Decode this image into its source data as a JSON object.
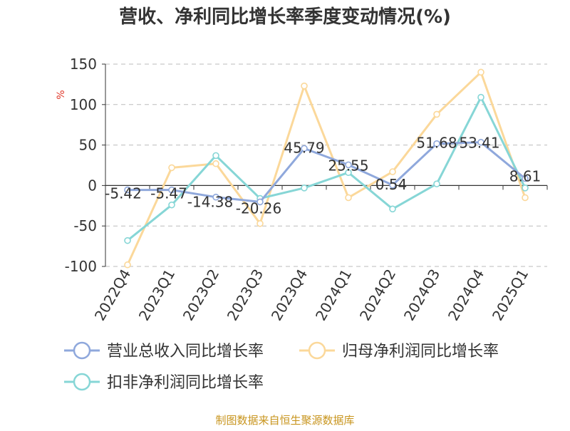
{
  "colors": {
    "series1": "#8fa8dc",
    "series2": "#fbd89a",
    "series3": "#86d6d6",
    "source": "#c8951e",
    "unit": "#e0392b",
    "grid": "#bbbbbb",
    "axis": "#333333",
    "text": "#333333"
  },
  "chart_data": {
    "type": "line",
    "title": "营收、净利同比增长率季度变动情况(%)",
    "ylabel": "%",
    "ylim": [
      -100,
      150
    ],
    "yticks": [
      150,
      100,
      50,
      0,
      -50,
      -100
    ],
    "ytick_labels": [
      "150",
      "100",
      "50",
      "0",
      "-50",
      "-100"
    ],
    "grid": "horizontal dashed",
    "legend_position": "bottom",
    "categories": [
      "2022Q4",
      "2023Q1",
      "2023Q2",
      "2023Q3",
      "2023Q4",
      "2024Q1",
      "2024Q2",
      "2024Q3",
      "2024Q4",
      "2025Q1"
    ],
    "series": [
      {
        "name": "营业总收入同比增长率",
        "values": [
          -5.42,
          -5.47,
          -14.38,
          -20.26,
          45.79,
          25.55,
          0.54,
          51.68,
          53.41,
          8.61
        ],
        "labels": [
          "-5.42",
          "-5.47",
          "-14.38",
          "-20.26",
          "45.79",
          "25.55",
          "0.54",
          "51.68",
          "53.41",
          "8.61"
        ]
      },
      {
        "name": "归母净利润同比增长率",
        "values": [
          -98,
          22,
          27,
          -47,
          123,
          -15,
          17,
          88,
          140,
          -15
        ]
      },
      {
        "name": "扣非净利润同比增长率",
        "values": [
          -68,
          -24,
          37,
          -16,
          -3,
          16,
          -29,
          2,
          109,
          -3
        ]
      }
    ]
  },
  "source": "制图数据来自恒生聚源数据库"
}
